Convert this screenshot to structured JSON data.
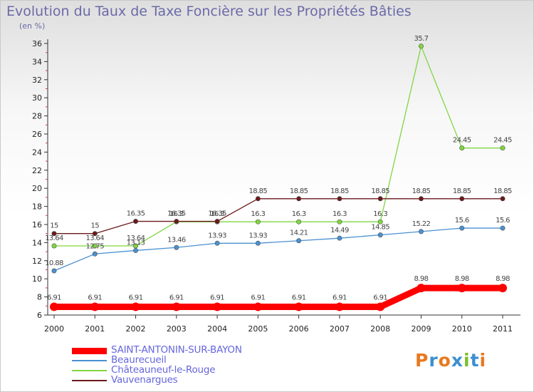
{
  "title": "Evolution du Taux de Taxe Foncière sur les Propriétés Bâties",
  "unit_label": "(en %)",
  "logo": {
    "text": "Proxiti",
    "letters": [
      {
        "ch": "P",
        "color": "#e8791f"
      },
      {
        "ch": "r",
        "color": "#3b8fd0"
      },
      {
        "ch": "o",
        "color": "#e8791f"
      },
      {
        "ch": "x",
        "color": "#3b8fd0"
      },
      {
        "ch": "i",
        "color": "#7bbf2a"
      },
      {
        "ch": "t",
        "color": "#3b8fd0"
      },
      {
        "ch": "i",
        "color": "#e8791f"
      }
    ]
  },
  "chart_data": {
    "type": "line",
    "title": "Evolution du Taux de Taxe Foncière sur les Propriétés Bâties",
    "ylabel": "(en %)",
    "xlabel": "",
    "x": [
      "2000",
      "2001",
      "2002",
      "2003",
      "2004",
      "2005",
      "2006",
      "2007",
      "2008",
      "2009",
      "2010",
      "2011"
    ],
    "ylim": [
      6,
      36
    ],
    "yticks": [
      6,
      8,
      10,
      12,
      14,
      16,
      18,
      20,
      22,
      24,
      26,
      28,
      30,
      32,
      34,
      36
    ],
    "grid": false,
    "legend_position": "bottom-left",
    "series": [
      {
        "name": "SAINT-ANTONIN-SUR-BAYON",
        "color": "#ff0000",
        "bold": true,
        "values": [
          6.91,
          6.91,
          6.91,
          6.91,
          6.91,
          6.91,
          6.91,
          6.91,
          6.91,
          8.98,
          8.98,
          8.98
        ],
        "labels": [
          "6.91",
          "6.91",
          "6.91",
          "6.91",
          "6.91",
          "6.91",
          "6.91",
          "6.91",
          "6.91",
          "8.98",
          "8.98",
          "8.98"
        ]
      },
      {
        "name": "Beaurecueil",
        "color": "#4a90d0",
        "bold": false,
        "values": [
          10.88,
          12.75,
          13.13,
          13.46,
          13.93,
          13.93,
          14.21,
          14.49,
          14.85,
          15.22,
          15.6,
          15.6
        ],
        "labels": [
          "10.88",
          "12.75",
          "13.13",
          "13.46",
          "13.93",
          "13.93",
          "14.21",
          "14.49",
          "14.85",
          "15.22",
          "15.6",
          "15.6"
        ]
      },
      {
        "name": "Châteauneuf-le-Rouge",
        "color": "#7fd641",
        "bold": false,
        "values": [
          13.64,
          13.64,
          13.64,
          16.3,
          16.3,
          16.3,
          16.3,
          16.3,
          16.3,
          35.7,
          24.45,
          24.45
        ],
        "labels": [
          "13.64",
          "13.64",
          "13.64",
          "16.3",
          "16.3",
          "16.3",
          "16.3",
          "16.3",
          "16.3",
          "35.7",
          "24.45",
          "24.45"
        ]
      },
      {
        "name": "Vauvenargues",
        "color": "#6b1a1a",
        "bold": false,
        "values": [
          15,
          15,
          16.35,
          16.35,
          16.35,
          18.85,
          18.85,
          18.85,
          18.85,
          18.85,
          18.85,
          18.85
        ],
        "labels": [
          "15",
          "15",
          "16.35",
          "16.35",
          "16.35",
          "18.85",
          "18.85",
          "18.85",
          "18.85",
          "18.85",
          "18.85",
          "18.85"
        ]
      }
    ]
  }
}
